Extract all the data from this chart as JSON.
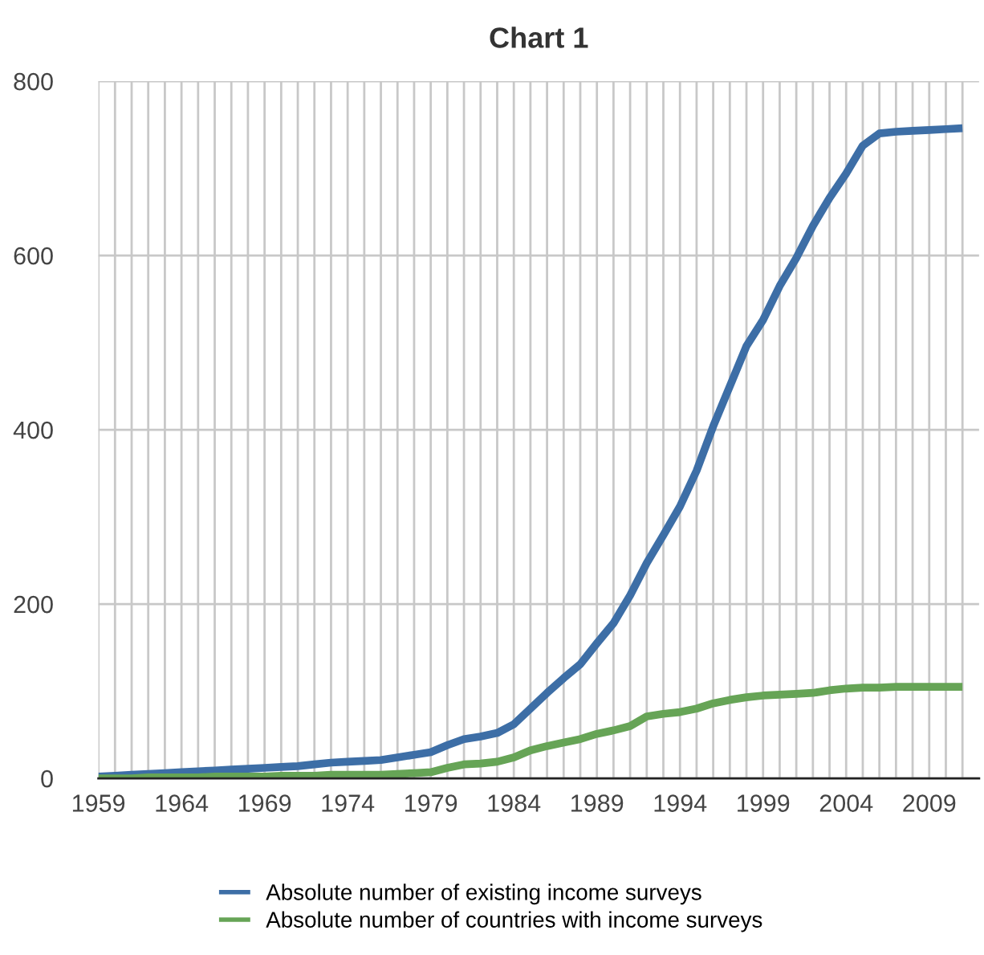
{
  "chart_data": {
    "type": "line",
    "title": "Chart 1",
    "categories": [
      "1959",
      null,
      null,
      null,
      null,
      "1964",
      null,
      null,
      null,
      null,
      "1969",
      null,
      null,
      null,
      null,
      "1974",
      null,
      null,
      null,
      null,
      "1979",
      null,
      null,
      null,
      null,
      "1984",
      null,
      null,
      null,
      null,
      "1989",
      null,
      null,
      null,
      null,
      "1994",
      null,
      null,
      null,
      null,
      "1999",
      null,
      null,
      null,
      null,
      "2004",
      null,
      null,
      null,
      null,
      "2009",
      null,
      null
    ],
    "series": [
      {
        "name": "Absolute number of existing income surveys",
        "color": "#3d6ea6",
        "values": [
          2,
          3,
          4,
          5,
          6,
          7,
          8,
          9,
          10,
          11,
          12,
          13,
          14,
          16,
          18,
          19,
          20,
          21,
          24,
          27,
          30,
          38,
          45,
          48,
          52,
          62,
          80,
          98,
          115,
          131,
          155,
          178,
          210,
          247,
          279,
          312,
          353,
          404,
          450,
          496,
          526,
          565,
          597,
          634,
          666,
          694,
          726,
          740,
          742,
          743,
          744,
          745,
          746
        ]
      },
      {
        "name": "Absolute number of countries with income surveys",
        "color": "#66a456",
        "values": [
          0,
          0,
          0,
          1,
          1,
          1,
          1,
          2,
          2,
          2,
          2,
          3,
          3,
          3,
          4,
          4,
          4,
          4,
          5,
          6,
          7,
          12,
          16,
          17,
          19,
          24,
          32,
          37,
          41,
          45,
          51,
          55,
          60,
          71,
          74,
          76,
          80,
          86,
          90,
          93,
          95,
          96,
          97,
          98,
          101,
          103,
          104,
          104,
          105,
          105,
          105,
          105,
          105
        ]
      }
    ],
    "ylim": [
      0,
      800
    ],
    "yticks": [
      0,
      200,
      400,
      600,
      800
    ],
    "grid": true,
    "legend": "bottom",
    "line_style": "solid",
    "marker": "none"
  }
}
